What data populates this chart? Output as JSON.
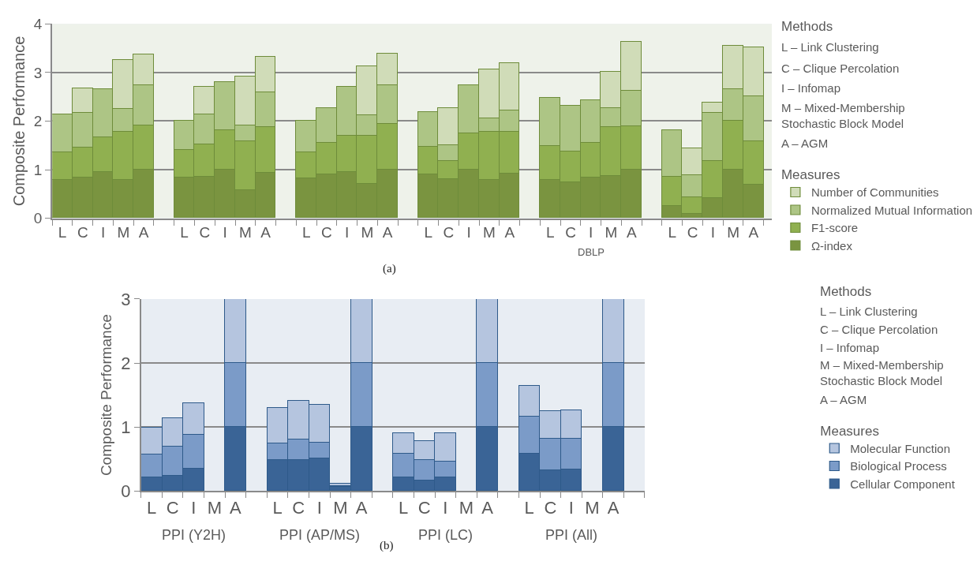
{
  "chart_data": [
    {
      "type": "bar",
      "stacked": true,
      "ylabel": "Composite Performance",
      "legend_title": "Measures",
      "legend": "right",
      "categories": [
        "L",
        "C",
        "I",
        "M",
        "A",
        null,
        "L",
        "C",
        "I",
        "M",
        "A",
        null,
        "L",
        "C",
        "I",
        "M",
        "A",
        null,
        "L",
        "C",
        "I",
        "M",
        "A",
        null,
        "L",
        "C",
        "I",
        "M",
        "A",
        null,
        "L",
        "C",
        "I",
        "M",
        "A"
      ],
      "ylim": [
        0,
        4
      ],
      "yticks": [
        0,
        1,
        2,
        3,
        4
      ],
      "grid": "y",
      "series": [
        {
          "name": "Ω-index",
          "color": "#7a9440",
          "values": [
            0.79,
            0.83,
            0.94,
            0.78,
            1.0,
            null,
            0.83,
            0.85,
            1.0,
            0.58,
            0.93,
            null,
            0.81,
            0.9,
            0.95,
            0.7,
            1.0,
            null,
            0.89,
            0.8,
            1.0,
            0.78,
            0.92,
            null,
            0.79,
            0.73,
            0.84,
            0.87,
            1.0,
            null,
            0.25,
            0.09,
            0.41,
            1.0,
            0.68
          ]
        },
        {
          "name": "F1-score",
          "color": "#90b050",
          "values": [
            0.56,
            0.62,
            0.72,
            1.0,
            0.9,
            null,
            0.57,
            0.66,
            0.8,
            1.0,
            0.95,
            null,
            0.55,
            0.64,
            0.75,
            1.0,
            0.93,
            null,
            0.58,
            0.37,
            0.74,
            1.0,
            0.86,
            null,
            0.69,
            0.64,
            0.71,
            1.0,
            0.89,
            null,
            0.6,
            0.33,
            0.76,
            1.0,
            0.9
          ]
        },
        {
          "name": "Normalized Mutual Information",
          "color": "#adc585",
          "values": [
            0.79,
            0.72,
            1.0,
            0.47,
            0.84,
            null,
            0.61,
            0.63,
            1.0,
            0.33,
            0.71,
            null,
            0.65,
            0.72,
            1.0,
            0.42,
            0.81,
            null,
            0.71,
            0.33,
            1.0,
            0.27,
            0.44,
            null,
            1.0,
            0.94,
            0.88,
            0.4,
            0.73,
            null,
            0.96,
            0.46,
            1.0,
            0.66,
            0.93
          ]
        },
        {
          "name": "Number of Communities",
          "color": "#d0dcb8",
          "values": [
            null,
            0.5,
            null,
            1.0,
            0.62,
            null,
            null,
            0.56,
            null,
            1.0,
            0.72,
            null,
            null,
            null,
            null,
            1.0,
            0.64,
            null,
            null,
            0.76,
            null,
            1.0,
            0.96,
            null,
            null,
            null,
            null,
            0.74,
            1.0,
            null,
            null,
            0.55,
            0.21,
            0.89,
            1.0
          ]
        }
      ],
      "annotations": [
        "(a)",
        "Methods",
        "L – Link Clustering",
        "C – Clique Percolation",
        "I – Infomap",
        "M – Mixed-Membership\nStochastic Block Model",
        "A – AGM",
        "DBLP"
      ]
    },
    {
      "type": "bar",
      "stacked": true,
      "ylabel": "Composite Performance",
      "legend_title": "Measures",
      "legend": "right",
      "categories": [
        "L",
        "C",
        "I",
        "M",
        "A",
        null,
        "L",
        "C",
        "I",
        "M",
        "A",
        null,
        "L",
        "C",
        "I",
        "M",
        "A",
        null,
        "L",
        "C",
        "I",
        "M",
        "A"
      ],
      "ylim": [
        0,
        3
      ],
      "yticks": [
        0,
        1,
        2,
        3
      ],
      "grid": "y",
      "series": [
        {
          "name": "Cellular Component",
          "color": "#3a6496",
          "values": [
            0.22,
            0.24,
            0.35,
            null,
            1.0,
            null,
            0.48,
            0.49,
            0.51,
            0.07,
            1.0,
            null,
            0.21,
            0.17,
            0.21,
            null,
            1.0,
            null,
            0.58,
            0.32,
            0.34,
            null,
            1.0
          ]
        },
        {
          "name": "Biological Process",
          "color": "#7b9bc8",
          "values": [
            0.35,
            0.45,
            0.53,
            null,
            1.0,
            null,
            0.27,
            0.31,
            0.25,
            0.01,
            1.0,
            null,
            0.37,
            0.31,
            0.25,
            null,
            1.0,
            null,
            0.58,
            0.5,
            0.48,
            null,
            1.0
          ]
        },
        {
          "name": "Molecular Function",
          "color": "#b5c5df",
          "values": [
            0.42,
            0.45,
            0.49,
            null,
            1.0,
            null,
            0.55,
            0.61,
            0.59,
            0.03,
            1.0,
            null,
            0.33,
            0.3,
            0.44,
            null,
            1.0,
            null,
            0.48,
            0.43,
            0.44,
            null,
            1.0
          ]
        }
      ],
      "annotations": [
        "(b)",
        "Methods",
        "L – Link Clustering",
        "C – Clique Percolation",
        "I – Infomap",
        "M – Mixed-Membership\nStochastic Block Model",
        "A – AGM",
        "PPI (Y2H)",
        "PPI (AP/MS)",
        "PPI (LC)",
        "PPI (All)"
      ]
    }
  ]
}
